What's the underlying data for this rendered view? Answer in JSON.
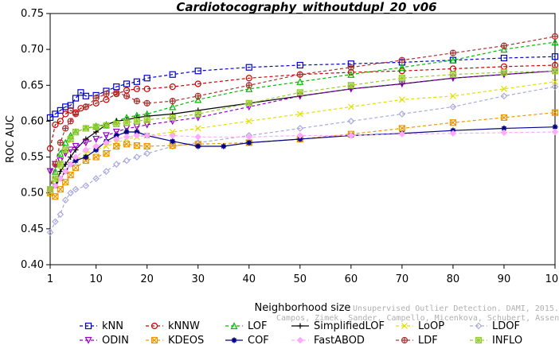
{
  "chart_data": {
    "type": "line",
    "title": "Cardiotocography_withoutdupl_20_v06",
    "xlabel": "Neighborhood size",
    "ylabel": "ROC AUC",
    "xlim": [
      1,
      100
    ],
    "ylim": [
      0.4,
      0.75
    ],
    "x_ticks": [
      "1",
      "10",
      "20",
      "30",
      "40",
      "50",
      "60",
      "70",
      "80",
      "90",
      "100"
    ],
    "y_ticks": [
      "0.40",
      "0.45",
      "0.50",
      "0.55",
      "0.60",
      "0.65",
      "0.70",
      "0.75"
    ],
    "grid": false,
    "legend_position": "bottom",
    "series": [
      {
        "name": "kNN",
        "color": "#0000cc",
        "marker": "square",
        "dash": "4,3",
        "points": [
          [
            1,
            0.605
          ],
          [
            2,
            0.61
          ],
          [
            3,
            0.615
          ],
          [
            4,
            0.62
          ],
          [
            5,
            0.622
          ],
          [
            6,
            0.632
          ],
          [
            7,
            0.64
          ],
          [
            8,
            0.635
          ],
          [
            10,
            0.636
          ],
          [
            12,
            0.642
          ],
          [
            14,
            0.648
          ],
          [
            16,
            0.652
          ],
          [
            18,
            0.655
          ],
          [
            20,
            0.66
          ],
          [
            25,
            0.665
          ],
          [
            30,
            0.67
          ],
          [
            40,
            0.675
          ],
          [
            50,
            0.678
          ],
          [
            60,
            0.68
          ],
          [
            70,
            0.682
          ],
          [
            80,
            0.685
          ],
          [
            90,
            0.688
          ],
          [
            100,
            0.69
          ]
        ]
      },
      {
        "name": "kNNW",
        "color": "#cc0000",
        "marker": "circle",
        "dash": "4,3",
        "points": [
          [
            1,
            0.562
          ],
          [
            2,
            0.595
          ],
          [
            3,
            0.6
          ],
          [
            4,
            0.61
          ],
          [
            5,
            0.615
          ],
          [
            6,
            0.612
          ],
          [
            7,
            0.618
          ],
          [
            8,
            0.62
          ],
          [
            10,
            0.625
          ],
          [
            12,
            0.63
          ],
          [
            14,
            0.638
          ],
          [
            16,
            0.643
          ],
          [
            18,
            0.645
          ],
          [
            20,
            0.645
          ],
          [
            25,
            0.648
          ],
          [
            30,
            0.652
          ],
          [
            40,
            0.66
          ],
          [
            50,
            0.665
          ],
          [
            60,
            0.668
          ],
          [
            70,
            0.67
          ],
          [
            80,
            0.673
          ],
          [
            90,
            0.676
          ],
          [
            100,
            0.678
          ]
        ]
      },
      {
        "name": "LOF",
        "color": "#00bb00",
        "marker": "triangle-up",
        "dash": "4,3",
        "points": [
          [
            1,
            0.505
          ],
          [
            2,
            0.53
          ],
          [
            3,
            0.555
          ],
          [
            4,
            0.57
          ],
          [
            5,
            0.58
          ],
          [
            6,
            0.585
          ],
          [
            8,
            0.59
          ],
          [
            10,
            0.593
          ],
          [
            12,
            0.595
          ],
          [
            14,
            0.6
          ],
          [
            16,
            0.605
          ],
          [
            18,
            0.608
          ],
          [
            20,
            0.61
          ],
          [
            25,
            0.62
          ],
          [
            30,
            0.63
          ],
          [
            40,
            0.645
          ],
          [
            50,
            0.655
          ],
          [
            60,
            0.665
          ],
          [
            70,
            0.675
          ],
          [
            80,
            0.685
          ],
          [
            90,
            0.7
          ],
          [
            100,
            0.71
          ]
        ]
      },
      {
        "name": "SimplifiedLOF",
        "color": "#000000",
        "marker": "plus",
        "dash": "",
        "points": [
          [
            1,
            0.505
          ],
          [
            2,
            0.51
          ],
          [
            3,
            0.53
          ],
          [
            4,
            0.54
          ],
          [
            5,
            0.55
          ],
          [
            6,
            0.56
          ],
          [
            8,
            0.575
          ],
          [
            10,
            0.585
          ],
          [
            12,
            0.595
          ],
          [
            14,
            0.6
          ],
          [
            16,
            0.602
          ],
          [
            18,
            0.605
          ],
          [
            20,
            0.607
          ],
          [
            25,
            0.61
          ],
          [
            30,
            0.615
          ],
          [
            40,
            0.625
          ],
          [
            50,
            0.635
          ],
          [
            60,
            0.645
          ],
          [
            70,
            0.652
          ],
          [
            80,
            0.66
          ],
          [
            90,
            0.665
          ],
          [
            100,
            0.67
          ]
        ]
      },
      {
        "name": "LoOP",
        "color": "#e0e000",
        "marker": "cross",
        "dash": "4,3",
        "points": [
          [
            1,
            0.5
          ],
          [
            2,
            0.51
          ],
          [
            3,
            0.52
          ],
          [
            4,
            0.53
          ],
          [
            5,
            0.54
          ],
          [
            6,
            0.545
          ],
          [
            8,
            0.555
          ],
          [
            10,
            0.56
          ],
          [
            12,
            0.565
          ],
          [
            14,
            0.57
          ],
          [
            16,
            0.575
          ],
          [
            18,
            0.578
          ],
          [
            20,
            0.58
          ],
          [
            25,
            0.585
          ],
          [
            30,
            0.59
          ],
          [
            40,
            0.6
          ],
          [
            50,
            0.61
          ],
          [
            60,
            0.62
          ],
          [
            70,
            0.63
          ],
          [
            80,
            0.635
          ],
          [
            90,
            0.645
          ],
          [
            100,
            0.655
          ]
        ]
      },
      {
        "name": "LDOF",
        "color": "#aaaadd",
        "marker": "diamond",
        "dash": "4,3",
        "points": [
          [
            1,
            0.445
          ],
          [
            2,
            0.46
          ],
          [
            3,
            0.47
          ],
          [
            4,
            0.49
          ],
          [
            5,
            0.5
          ],
          [
            6,
            0.505
          ],
          [
            8,
            0.51
          ],
          [
            10,
            0.52
          ],
          [
            12,
            0.53
          ],
          [
            14,
            0.54
          ],
          [
            16,
            0.545
          ],
          [
            18,
            0.55
          ],
          [
            20,
            0.555
          ],
          [
            25,
            0.565
          ],
          [
            30,
            0.57
          ],
          [
            40,
            0.58
          ],
          [
            50,
            0.59
          ],
          [
            60,
            0.6
          ],
          [
            70,
            0.61
          ],
          [
            80,
            0.62
          ],
          [
            90,
            0.635
          ],
          [
            100,
            0.648
          ]
        ]
      },
      {
        "name": "ODIN",
        "color": "#9900cc",
        "marker": "triangle-down",
        "dash": "4,3",
        "points": [
          [
            1,
            0.53
          ],
          [
            2,
            0.54
          ],
          [
            3,
            0.545
          ],
          [
            4,
            0.555
          ],
          [
            5,
            0.56
          ],
          [
            6,
            0.565
          ],
          [
            8,
            0.57
          ],
          [
            10,
            0.575
          ],
          [
            12,
            0.58
          ],
          [
            14,
            0.585
          ],
          [
            16,
            0.59
          ],
          [
            18,
            0.592
          ],
          [
            20,
            0.595
          ],
          [
            25,
            0.6
          ],
          [
            30,
            0.605
          ],
          [
            40,
            0.62
          ],
          [
            50,
            0.635
          ],
          [
            60,
            0.645
          ],
          [
            70,
            0.652
          ],
          [
            80,
            0.66
          ],
          [
            90,
            0.665
          ],
          [
            100,
            0.67
          ]
        ]
      },
      {
        "name": "KDEOS",
        "color": "#ee9900",
        "marker": "square-x",
        "dash": "4,3",
        "points": [
          [
            1,
            0.5
          ],
          [
            2,
            0.495
          ],
          [
            3,
            0.505
          ],
          [
            4,
            0.515
          ],
          [
            5,
            0.525
          ],
          [
            6,
            0.535
          ],
          [
            8,
            0.545
          ],
          [
            10,
            0.55
          ],
          [
            12,
            0.555
          ],
          [
            14,
            0.565
          ],
          [
            16,
            0.568
          ],
          [
            18,
            0.566
          ],
          [
            20,
            0.565
          ],
          [
            25,
            0.566
          ],
          [
            30,
            0.568
          ],
          [
            40,
            0.57
          ],
          [
            50,
            0.575
          ],
          [
            60,
            0.582
          ],
          [
            70,
            0.59
          ],
          [
            80,
            0.598
          ],
          [
            90,
            0.605
          ],
          [
            100,
            0.612
          ]
        ]
      },
      {
        "name": "COF",
        "color": "#000088",
        "marker": "star",
        "dash": "",
        "points": [
          [
            1,
            0.505
          ],
          [
            2,
            0.51
          ],
          [
            3,
            0.52
          ],
          [
            4,
            0.53
          ],
          [
            5,
            0.54
          ],
          [
            6,
            0.545
          ],
          [
            8,
            0.55
          ],
          [
            10,
            0.56
          ],
          [
            12,
            0.572
          ],
          [
            14,
            0.58
          ],
          [
            16,
            0.585
          ],
          [
            18,
            0.585
          ],
          [
            20,
            0.58
          ],
          [
            25,
            0.572
          ],
          [
            30,
            0.565
          ],
          [
            35,
            0.565
          ],
          [
            40,
            0.57
          ],
          [
            50,
            0.575
          ],
          [
            60,
            0.58
          ],
          [
            70,
            0.583
          ],
          [
            80,
            0.587
          ],
          [
            90,
            0.59
          ],
          [
            100,
            0.592
          ]
        ]
      },
      {
        "name": "FastABOD",
        "color": "#ffaaff",
        "marker": "diamond-filled",
        "dash": "4,3",
        "points": [
          [
            1,
            0.505
          ],
          [
            2,
            0.51
          ],
          [
            3,
            0.52
          ],
          [
            4,
            0.53
          ],
          [
            5,
            0.54
          ],
          [
            6,
            0.55
          ],
          [
            8,
            0.56
          ],
          [
            10,
            0.565
          ],
          [
            12,
            0.57
          ],
          [
            14,
            0.575
          ],
          [
            16,
            0.578
          ],
          [
            18,
            0.58
          ],
          [
            20,
            0.58
          ],
          [
            25,
            0.58
          ],
          [
            30,
            0.578
          ],
          [
            40,
            0.578
          ],
          [
            50,
            0.58
          ],
          [
            60,
            0.58
          ],
          [
            70,
            0.582
          ],
          [
            80,
            0.583
          ],
          [
            90,
            0.584
          ],
          [
            100,
            0.585
          ]
        ]
      },
      {
        "name": "LDF",
        "color": "#aa3333",
        "marker": "circle-plus",
        "dash": "4,3",
        "points": [
          [
            1,
            0.505
          ],
          [
            2,
            0.54
          ],
          [
            3,
            0.57
          ],
          [
            4,
            0.59
          ],
          [
            5,
            0.6
          ],
          [
            6,
            0.61
          ],
          [
            8,
            0.62
          ],
          [
            10,
            0.632
          ],
          [
            12,
            0.638
          ],
          [
            14,
            0.64
          ],
          [
            16,
            0.635
          ],
          [
            18,
            0.628
          ],
          [
            20,
            0.625
          ],
          [
            25,
            0.628
          ],
          [
            30,
            0.635
          ],
          [
            40,
            0.65
          ],
          [
            50,
            0.665
          ],
          [
            60,
            0.675
          ],
          [
            70,
            0.685
          ],
          [
            80,
            0.695
          ],
          [
            90,
            0.705
          ],
          [
            100,
            0.718
          ]
        ]
      },
      {
        "name": "INFLO",
        "color": "#99cc33",
        "marker": "square-star",
        "dash": "4,3",
        "points": [
          [
            1,
            0.505
          ],
          [
            2,
            0.52
          ],
          [
            3,
            0.54
          ],
          [
            4,
            0.56
          ],
          [
            5,
            0.575
          ],
          [
            6,
            0.585
          ],
          [
            8,
            0.59
          ],
          [
            10,
            0.592
          ],
          [
            12,
            0.594
          ],
          [
            14,
            0.596
          ],
          [
            16,
            0.598
          ],
          [
            18,
            0.6
          ],
          [
            20,
            0.602
          ],
          [
            25,
            0.605
          ],
          [
            30,
            0.61
          ],
          [
            40,
            0.625
          ],
          [
            50,
            0.64
          ],
          [
            60,
            0.65
          ],
          [
            70,
            0.66
          ],
          [
            80,
            0.665
          ],
          [
            90,
            0.668
          ],
          [
            100,
            0.67
          ]
        ]
      }
    ]
  },
  "watermark": {
    "line1": "Unsupervised Outlier Detection. DAMI, 2015.",
    "line2": "Campos, Zimek, Sander, Campello, Micenkova, Schubert, Assent, Houle"
  }
}
